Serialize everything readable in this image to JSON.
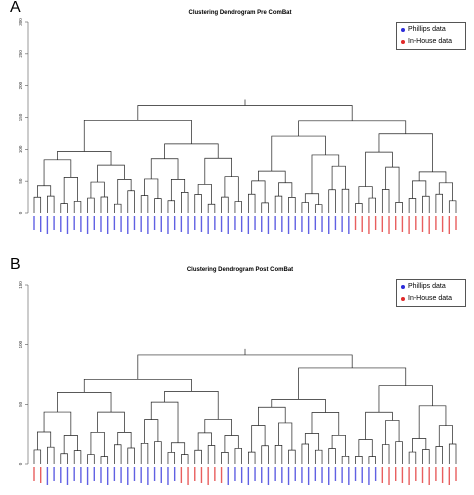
{
  "colors": {
    "phillips": "#2b2bd9",
    "inhouse": "#e02828"
  },
  "panels": [
    {
      "letter": "A",
      "title": "Clustering Dendrogram Pre ComBat",
      "legend": [
        "Phillips data",
        "In-House data"
      ],
      "y_ticks": [
        "0",
        "50",
        "100",
        "150",
        "200",
        "250",
        "300"
      ],
      "ylim": [
        0,
        300
      ]
    },
    {
      "letter": "B",
      "title": "Clustering Dendrogram Post ComBat",
      "legend": [
        "Phillips data",
        "In-House data"
      ],
      "y_ticks": [
        "0",
        "50",
        "100",
        "150"
      ],
      "ylim": [
        0,
        150
      ]
    }
  ]
}
